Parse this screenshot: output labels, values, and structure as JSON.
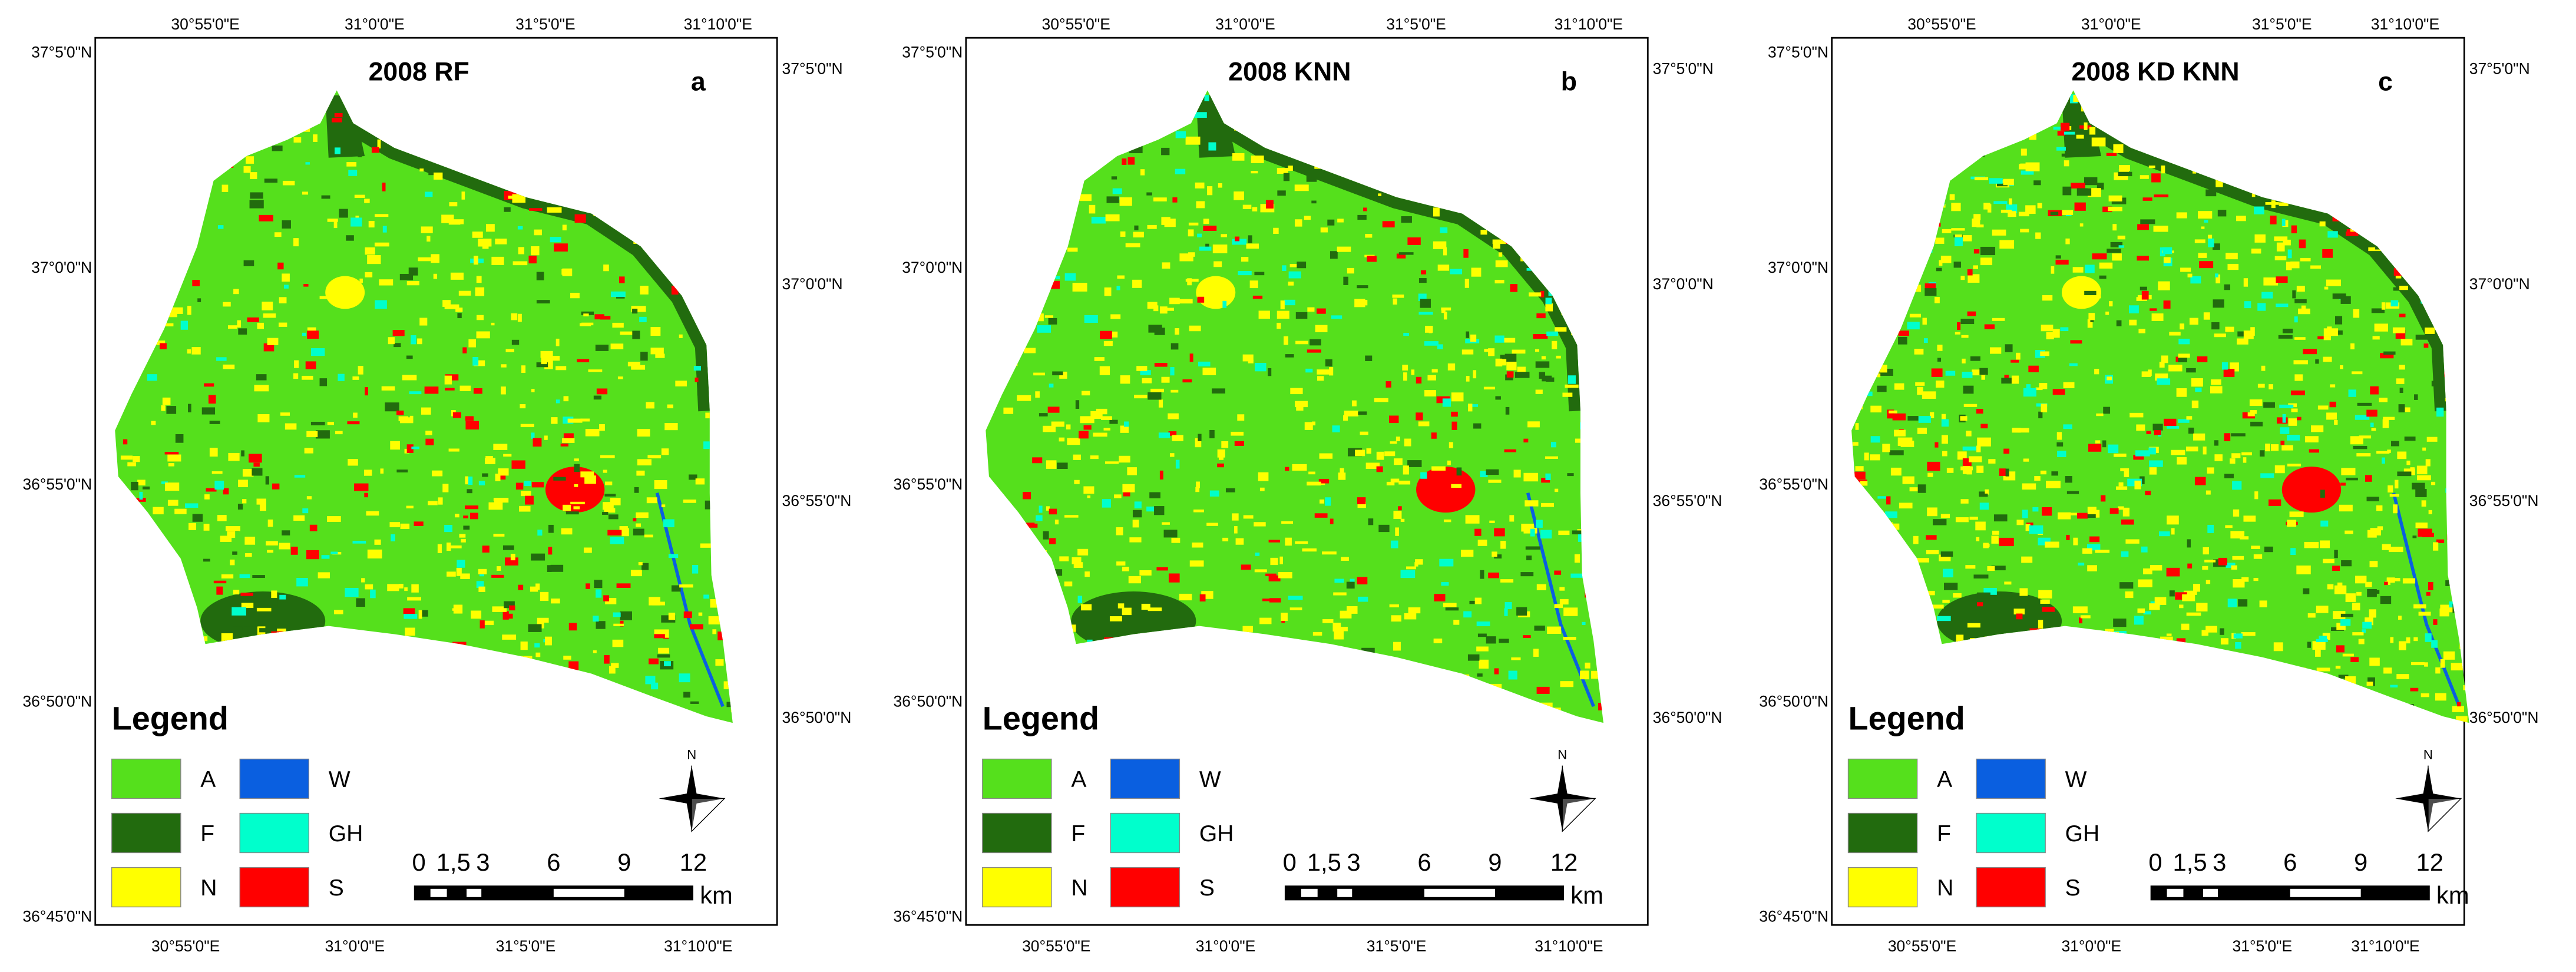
{
  "panels": [
    {
      "title": "2008 RF",
      "letter": "a",
      "top_labels": [
        "30°55'0\"E",
        "31°0'0\"E",
        "31°5'0\"E",
        "31°10'0\"E"
      ],
      "bottom_labels": [
        "30°55'0\"E",
        "31°0'0\"E",
        "31°5'0\"E",
        "31°10'0\"E"
      ],
      "left_labels": [
        "37°5'0\"N",
        "37°0'0\"N",
        "36°55'0\"N",
        "36°50'0\"N",
        "36°45'0\"N"
      ],
      "right_labels": [
        "37°5'0\"N",
        "37°0'0\"N",
        "36°55'0\"N",
        "36°50'0\"N"
      ],
      "legend_title": "Legend",
      "legend": [
        {
          "label": "A",
          "color": "#55e01c"
        },
        {
          "label": "W",
          "color": "#0a5fe0"
        },
        {
          "label": "F",
          "color": "#226b0e"
        },
        {
          "label": "GH",
          "color": "#00ffcc"
        },
        {
          "label": "N",
          "color": "#ffff00"
        },
        {
          "label": "S",
          "color": "#ff0000"
        }
      ],
      "scale_labels": [
        "0",
        "1,5",
        "3",
        "6",
        "9",
        "12"
      ],
      "scale_unit": "km",
      "north": "N"
    },
    {
      "title": "2008 KNN",
      "letter": "b",
      "top_labels": [
        "30°55'0\"E",
        "31°0'0\"E",
        "31°5'0\"E",
        "31°10'0\"E"
      ],
      "bottom_labels": [
        "30°55'0\"E",
        "31°0'0\"E",
        "31°5'0\"E",
        "31°10'0\"E"
      ],
      "left_labels": [
        "37°5'0\"N",
        "37°0'0\"N",
        "36°55'0\"N",
        "36°50'0\"N",
        "36°45'0\"N"
      ],
      "right_labels": [
        "37°5'0\"N",
        "37°0'0\"N",
        "36°55'0\"N",
        "36°50'0\"N"
      ],
      "legend_title": "Legend",
      "legend": [
        {
          "label": "A",
          "color": "#55e01c"
        },
        {
          "label": "W",
          "color": "#0a5fe0"
        },
        {
          "label": "F",
          "color": "#226b0e"
        },
        {
          "label": "GH",
          "color": "#00ffcc"
        },
        {
          "label": "N",
          "color": "#ffff00"
        },
        {
          "label": "S",
          "color": "#ff0000"
        }
      ],
      "scale_labels": [
        "0",
        "1,5",
        "3",
        "6",
        "9",
        "12"
      ],
      "scale_unit": "km",
      "north": "N"
    },
    {
      "title": "2008 KD KNN",
      "letter": "c",
      "top_labels": [
        "30°55'0\"E",
        "31°0'0\"E",
        "31°5'0\"E",
        "31°10'0\"E"
      ],
      "bottom_labels": [
        "30°55'0\"E",
        "31°0'0\"E",
        "31°5'0\"E",
        "31°10'0\"E"
      ],
      "left_labels": [
        "37°5'0\"N",
        "37°0'0\"N",
        "36°55'0\"N",
        "36°50'0\"N",
        "36°45'0\"N"
      ],
      "right_labels": [
        "37°5'0\"N",
        "37°0'0\"N",
        "36°55'0\"N",
        "36°50'0\"N"
      ],
      "legend_title": "Legend",
      "legend": [
        {
          "label": "A",
          "color": "#55e01c"
        },
        {
          "label": "W",
          "color": "#0a5fe0"
        },
        {
          "label": "F",
          "color": "#226b0e"
        },
        {
          "label": "GH",
          "color": "#00ffcc"
        },
        {
          "label": "N",
          "color": "#ffff00"
        },
        {
          "label": "S",
          "color": "#ff0000"
        }
      ],
      "scale_labels": [
        "0",
        "1,5",
        "3",
        "6",
        "9",
        "12"
      ],
      "scale_unit": "km",
      "north": "N"
    }
  ]
}
